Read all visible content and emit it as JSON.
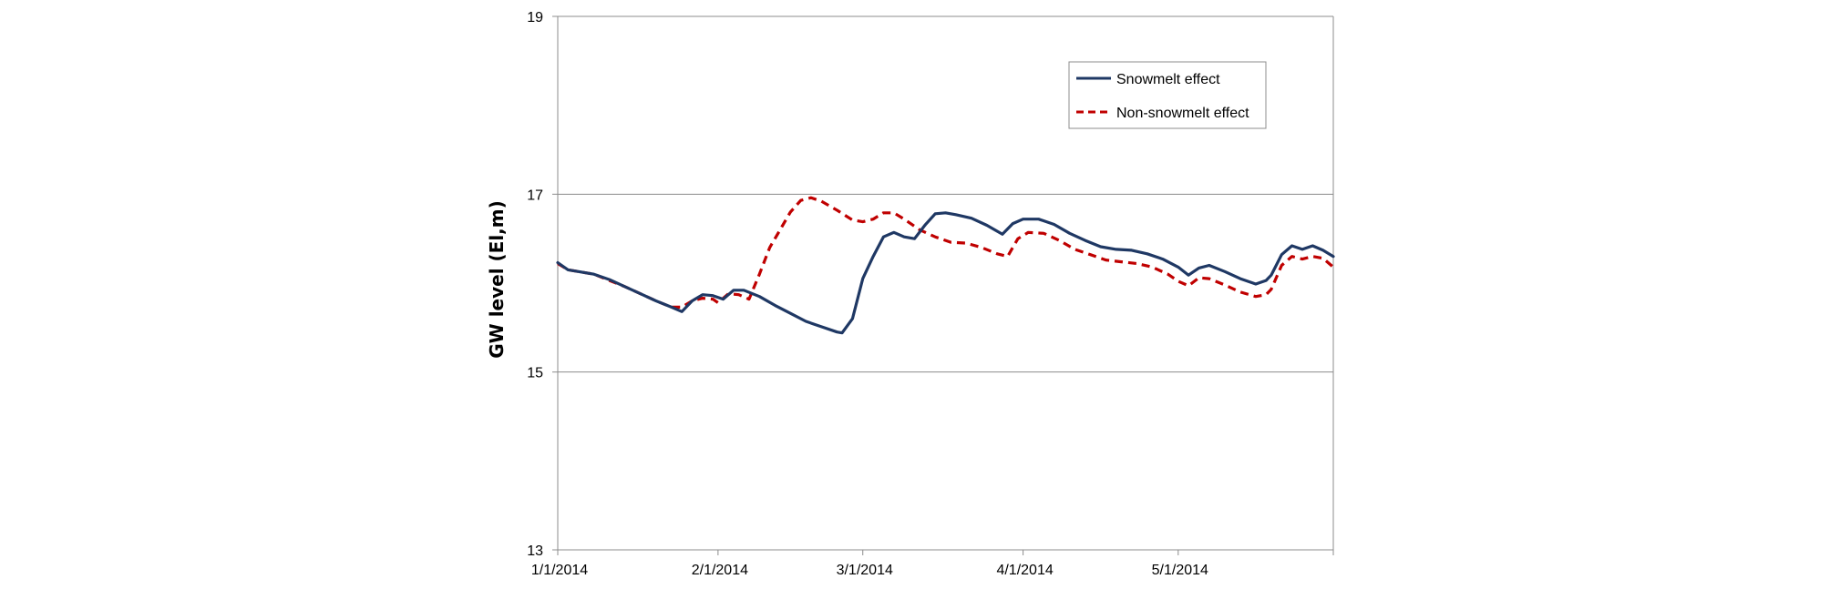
{
  "chart_data": {
    "type": "line",
    "ylabel": "GW level (El,m)",
    "ylim": [
      13,
      19
    ],
    "yticks": [
      13,
      15,
      17,
      19
    ],
    "xlim": [
      "2014-01-01",
      "2014-05-31"
    ],
    "xticks": [
      "2014-01-01",
      "2014-02-01",
      "2014-03-01",
      "2014-04-01",
      "2014-05-01"
    ],
    "xtick_labels": [
      "1/1/2014",
      "2/1/2014",
      "3/1/2014",
      "4/1/2014",
      "5/1/2014"
    ],
    "grid": "horizontal major gridlines",
    "legend_position": "top-right",
    "series": [
      {
        "name": "Snowmelt effect",
        "color": "#1F3864",
        "style": "solid",
        "points": [
          [
            "2014-01-01",
            16.23
          ],
          [
            "2014-01-03",
            16.15
          ],
          [
            "2014-01-05",
            16.13
          ],
          [
            "2014-01-08",
            16.1
          ],
          [
            "2014-01-11",
            16.04
          ],
          [
            "2014-01-14",
            15.96
          ],
          [
            "2014-01-17",
            15.88
          ],
          [
            "2014-01-20",
            15.8
          ],
          [
            "2014-01-23",
            15.73
          ],
          [
            "2014-01-25",
            15.68
          ],
          [
            "2014-01-27",
            15.8
          ],
          [
            "2014-01-29",
            15.87
          ],
          [
            "2014-01-31",
            15.86
          ],
          [
            "2014-02-02",
            15.82
          ],
          [
            "2014-02-04",
            15.92
          ],
          [
            "2014-02-06",
            15.92
          ],
          [
            "2014-02-09",
            15.85
          ],
          [
            "2014-02-12",
            15.75
          ],
          [
            "2014-02-15",
            15.66
          ],
          [
            "2014-02-18",
            15.57
          ],
          [
            "2014-02-21",
            15.51
          ],
          [
            "2014-02-24",
            15.45
          ],
          [
            "2014-02-25",
            15.44
          ],
          [
            "2014-02-27",
            15.6
          ],
          [
            "2014-03-01",
            16.05
          ],
          [
            "2014-03-03",
            16.3
          ],
          [
            "2014-03-05",
            16.52
          ],
          [
            "2014-03-07",
            16.57
          ],
          [
            "2014-03-09",
            16.52
          ],
          [
            "2014-03-11",
            16.5
          ],
          [
            "2014-03-13",
            16.65
          ],
          [
            "2014-03-15",
            16.78
          ],
          [
            "2014-03-17",
            16.79
          ],
          [
            "2014-03-19",
            16.77
          ],
          [
            "2014-03-22",
            16.73
          ],
          [
            "2014-03-25",
            16.65
          ],
          [
            "2014-03-28",
            16.55
          ],
          [
            "2014-03-30",
            16.67
          ],
          [
            "2014-04-01",
            16.72
          ],
          [
            "2014-04-04",
            16.72
          ],
          [
            "2014-04-07",
            16.66
          ],
          [
            "2014-04-10",
            16.56
          ],
          [
            "2014-04-13",
            16.48
          ],
          [
            "2014-04-16",
            16.41
          ],
          [
            "2014-04-19",
            16.38
          ],
          [
            "2014-04-22",
            16.37
          ],
          [
            "2014-04-25",
            16.33
          ],
          [
            "2014-04-28",
            16.27
          ],
          [
            "2014-05-01",
            16.18
          ],
          [
            "2014-05-03",
            16.09
          ],
          [
            "2014-05-05",
            16.17
          ],
          [
            "2014-05-07",
            16.2
          ],
          [
            "2014-05-10",
            16.13
          ],
          [
            "2014-05-13",
            16.05
          ],
          [
            "2014-05-16",
            15.99
          ],
          [
            "2014-05-18",
            16.03
          ],
          [
            "2014-05-19",
            16.09
          ],
          [
            "2014-05-21",
            16.32
          ],
          [
            "2014-05-23",
            16.42
          ],
          [
            "2014-05-25",
            16.38
          ],
          [
            "2014-05-27",
            16.42
          ],
          [
            "2014-05-29",
            16.37
          ],
          [
            "2014-05-31",
            16.3
          ]
        ]
      },
      {
        "name": "Non-snowmelt effect",
        "color": "#C00000",
        "style": "dashed",
        "points": [
          [
            "2014-01-01",
            16.22
          ],
          [
            "2014-01-03",
            16.15
          ],
          [
            "2014-01-05",
            16.13
          ],
          [
            "2014-01-08",
            16.1
          ],
          [
            "2014-01-11",
            16.03
          ],
          [
            "2014-01-14",
            15.96
          ],
          [
            "2014-01-17",
            15.88
          ],
          [
            "2014-01-20",
            15.8
          ],
          [
            "2014-01-23",
            15.73
          ],
          [
            "2014-01-25",
            15.73
          ],
          [
            "2014-01-27",
            15.8
          ],
          [
            "2014-01-29",
            15.83
          ],
          [
            "2014-01-31",
            15.82
          ],
          [
            "2014-02-01",
            15.78
          ],
          [
            "2014-02-03",
            15.88
          ],
          [
            "2014-02-05",
            15.87
          ],
          [
            "2014-02-07",
            15.82
          ],
          [
            "2014-02-09",
            16.1
          ],
          [
            "2014-02-11",
            16.4
          ],
          [
            "2014-02-13",
            16.6
          ],
          [
            "2014-02-15",
            16.8
          ],
          [
            "2014-02-17",
            16.93
          ],
          [
            "2014-02-19",
            16.96
          ],
          [
            "2014-02-21",
            16.92
          ],
          [
            "2014-02-24",
            16.82
          ],
          [
            "2014-02-27",
            16.71
          ],
          [
            "2014-03-01",
            16.69
          ],
          [
            "2014-03-03",
            16.72
          ],
          [
            "2014-03-05",
            16.79
          ],
          [
            "2014-03-07",
            16.79
          ],
          [
            "2014-03-09",
            16.72
          ],
          [
            "2014-03-12",
            16.6
          ],
          [
            "2014-03-15",
            16.52
          ],
          [
            "2014-03-18",
            16.46
          ],
          [
            "2014-03-21",
            16.45
          ],
          [
            "2014-03-24",
            16.4
          ],
          [
            "2014-03-27",
            16.33
          ],
          [
            "2014-03-29",
            16.3
          ],
          [
            "2014-03-31",
            16.5
          ],
          [
            "2014-04-02",
            16.57
          ],
          [
            "2014-04-05",
            16.56
          ],
          [
            "2014-04-08",
            16.48
          ],
          [
            "2014-04-11",
            16.38
          ],
          [
            "2014-04-14",
            16.32
          ],
          [
            "2014-04-17",
            16.26
          ],
          [
            "2014-04-20",
            16.24
          ],
          [
            "2014-04-23",
            16.22
          ],
          [
            "2014-04-26",
            16.18
          ],
          [
            "2014-04-29",
            16.1
          ],
          [
            "2014-05-01",
            16.02
          ],
          [
            "2014-05-03",
            15.97
          ],
          [
            "2014-05-05",
            16.06
          ],
          [
            "2014-05-07",
            16.05
          ],
          [
            "2014-05-10",
            15.98
          ],
          [
            "2014-05-13",
            15.9
          ],
          [
            "2014-05-16",
            15.85
          ],
          [
            "2014-05-18",
            15.87
          ],
          [
            "2014-05-19",
            15.93
          ],
          [
            "2014-05-21",
            16.2
          ],
          [
            "2014-05-23",
            16.3
          ],
          [
            "2014-05-25",
            16.27
          ],
          [
            "2014-05-27",
            16.3
          ],
          [
            "2014-05-29",
            16.28
          ],
          [
            "2014-05-31",
            16.18
          ]
        ]
      }
    ]
  }
}
